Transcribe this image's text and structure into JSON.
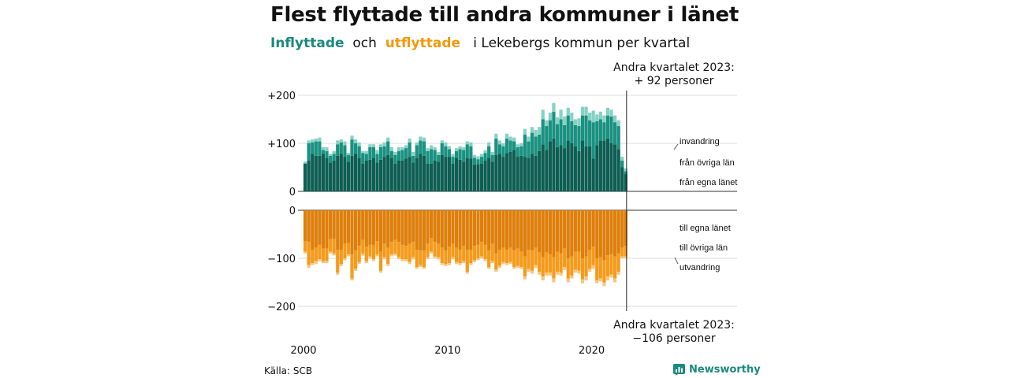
{
  "title": "Flest flyttade till andra kommuner i länet",
  "subtitle": {
    "inflyttade": "Inflyttade",
    "och": "och",
    "utflyttade": "utflyttade",
    "rest": "i Lekebergs  kommun  per  kvartal"
  },
  "annotation_top": {
    "line1": "Andra kvartalet 2023:",
    "line2": "+ 92 personer"
  },
  "annotation_bottom": {
    "line1": "Andra kvartalet 2023:",
    "line2": "−106 personer"
  },
  "source": "Källa: SCB",
  "brand": "Newsworthy",
  "colors": {
    "in_dark": "#0e5e53",
    "in_mid": "#1a9181",
    "in_light": "#86d2c5",
    "out_dark": "#de7f0c",
    "out_mid": "#f39b1d",
    "out_light": "#f8c681",
    "grid": "#dddddd",
    "axis": "#333333"
  },
  "chart_data": {
    "type": "bar",
    "stacked": true,
    "title": "Flest flyttade till andra kommuner i länet",
    "period": "quarterly",
    "start": "2000 Q1",
    "x_tick_labels": [
      "2000",
      "2010",
      "2020"
    ],
    "top_panel": {
      "ylim": [
        0,
        200
      ],
      "yticks": [
        "0",
        "+100",
        "+200"
      ],
      "series_labels": [
        "från egna länet",
        "från övriga län",
        "invandring"
      ],
      "egna_lanet": [
        58,
        64,
        78,
        74,
        74,
        78,
        70,
        60,
        64,
        74,
        78,
        72,
        62,
        74,
        78,
        70,
        58,
        64,
        66,
        70,
        60,
        66,
        72,
        76,
        70,
        58,
        64,
        64,
        68,
        72,
        60,
        70,
        78,
        74,
        58,
        58,
        64,
        62,
        76,
        72,
        72,
        58,
        70,
        66,
        62,
        70,
        68,
        56,
        57,
        58,
        64,
        70,
        62,
        76,
        78,
        72,
        80,
        82,
        86,
        72,
        74,
        72,
        70,
        78,
        74,
        84,
        98,
        86,
        104,
        110,
        92,
        96,
        90,
        106,
        100,
        94,
        84,
        106,
        94,
        94,
        68,
        96,
        106,
        106,
        110,
        100,
        98,
        88,
        50,
        36
      ],
      "ovriga_lan": [
        0,
        36,
        24,
        30,
        30,
        8,
        14,
        14,
        14,
        24,
        24,
        24,
        14,
        34,
        22,
        24,
        22,
        14,
        26,
        22,
        18,
        26,
        22,
        28,
        14,
        18,
        20,
        22,
        22,
        30,
        14,
        26,
        28,
        30,
        26,
        30,
        22,
        14,
        24,
        22,
        16,
        14,
        14,
        22,
        24,
        28,
        26,
        14,
        10,
        14,
        16,
        24,
        14,
        34,
        20,
        22,
        30,
        24,
        18,
        20,
        20,
        46,
        34,
        44,
        40,
        34,
        52,
        50,
        44,
        56,
        48,
        54,
        48,
        52,
        46,
        44,
        52,
        52,
        64,
        54,
        76,
        50,
        44,
        38,
        48,
        56,
        46,
        48,
        14,
        6
      ],
      "invandring": [
        4,
        6,
        6,
        6,
        8,
        6,
        8,
        4,
        6,
        8,
        6,
        8,
        4,
        8,
        8,
        8,
        4,
        6,
        6,
        6,
        8,
        6,
        8,
        8,
        8,
        6,
        8,
        6,
        6,
        8,
        8,
        6,
        8,
        8,
        6,
        8,
        6,
        6,
        6,
        8,
        6,
        6,
        6,
        6,
        6,
        6,
        8,
        6,
        6,
        6,
        6,
        8,
        6,
        10,
        8,
        6,
        10,
        8,
        8,
        6,
        6,
        12,
        10,
        12,
        14,
        16,
        20,
        12,
        16,
        18,
        14,
        20,
        18,
        16,
        18,
        12,
        16,
        18,
        18,
        16,
        24,
        14,
        16,
        14,
        16,
        14,
        14,
        12,
        8,
        6
      ]
    },
    "bottom_panel": {
      "ylim": [
        -200,
        0
      ],
      "yticks": [
        "0",
        "−100",
        "−200"
      ],
      "series_labels": [
        "till egna länet",
        "till övriga län",
        "utvandring"
      ],
      "egna_lanet": [
        -64,
        -66,
        -82,
        -78,
        -72,
        -80,
        -80,
        -60,
        -60,
        -82,
        -82,
        -70,
        -68,
        -92,
        -84,
        -74,
        -62,
        -76,
        -72,
        -72,
        -64,
        -86,
        -70,
        -78,
        -66,
        -62,
        -66,
        -72,
        -74,
        -70,
        -66,
        -82,
        -84,
        -84,
        -70,
        -58,
        -66,
        -70,
        -78,
        -84,
        -76,
        -70,
        -78,
        -82,
        -74,
        -82,
        -82,
        -74,
        -72,
        -66,
        -72,
        -84,
        -70,
        -90,
        -82,
        -78,
        -82,
        -78,
        -84,
        -80,
        -86,
        -96,
        -82,
        -84,
        -78,
        -88,
        -98,
        -88,
        -92,
        -98,
        -86,
        -90,
        -80,
        -100,
        -96,
        -86,
        -86,
        -100,
        -96,
        -82,
        -76,
        -100,
        -98,
        -104,
        -94,
        -92,
        -96,
        -90,
        -78,
        -74
      ],
      "ovriga_lan": [
        -22,
        -48,
        -28,
        -28,
        -30,
        -26,
        -26,
        -26,
        -30,
        -48,
        -30,
        -30,
        -24,
        -50,
        -38,
        -34,
        -28,
        -30,
        -24,
        -30,
        -28,
        -40,
        -28,
        -34,
        -26,
        -28,
        -32,
        -30,
        -28,
        -38,
        -32,
        -36,
        -30,
        -34,
        -28,
        -28,
        -30,
        -28,
        -32,
        -28,
        -34,
        -28,
        -30,
        -28,
        -32,
        -46,
        -28,
        -30,
        -28,
        -30,
        -30,
        -34,
        -36,
        -34,
        -34,
        -30,
        -28,
        -30,
        -34,
        -36,
        -32,
        -42,
        -40,
        -42,
        -36,
        -40,
        -40,
        -42,
        -38,
        -44,
        -42,
        -40,
        -38,
        -42,
        -40,
        -38,
        -40,
        -44,
        -42,
        -40,
        -38,
        -46,
        -44,
        -46,
        -44,
        -42,
        -46,
        -38,
        -18,
        -22
      ],
      "utvandring": [
        -4,
        -6,
        -4,
        -6,
        -4,
        -4,
        -4,
        -4,
        -4,
        -4,
        -4,
        -4,
        -4,
        -4,
        -4,
        -4,
        -4,
        -4,
        -4,
        -4,
        -4,
        -4,
        -4,
        -4,
        -4,
        -4,
        -4,
        -4,
        -4,
        -4,
        -4,
        -4,
        -4,
        -4,
        -4,
        -4,
        -4,
        -4,
        -4,
        -4,
        -4,
        -4,
        -4,
        -4,
        -4,
        -4,
        -4,
        -4,
        -4,
        -4,
        -4,
        -4,
        -4,
        -4,
        -4,
        -4,
        -4,
        -4,
        -4,
        -4,
        -4,
        -6,
        -6,
        -6,
        -6,
        -6,
        -8,
        -6,
        -6,
        -8,
        -6,
        -6,
        -6,
        -8,
        -6,
        -6,
        -6,
        -8,
        -8,
        -6,
        -8,
        -6,
        -6,
        -8,
        -8,
        -6,
        -8,
        -6,
        -4,
        -4
      ]
    }
  }
}
